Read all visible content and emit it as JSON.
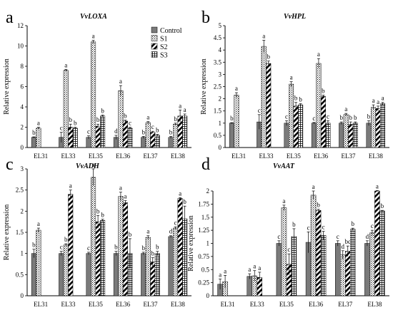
{
  "legend": [
    {
      "name": "Control",
      "pattern": "control"
    },
    {
      "name": "S1",
      "pattern": "s1"
    },
    {
      "name": "S2",
      "pattern": "s2"
    },
    {
      "name": "S3",
      "pattern": "s3"
    }
  ],
  "colors": {
    "control": "#7a7a7a",
    "axis": "#000000"
  },
  "chart_data": [
    {
      "letter": "a",
      "type": "bar",
      "title": "VvLOXA",
      "ylabel": "Relative expression",
      "ylim": [
        0,
        12
      ],
      "yticks": [
        0,
        2,
        4,
        6,
        8,
        10,
        12
      ],
      "categories": [
        "EL31",
        "EL33",
        "EL35",
        "EL36",
        "EL37",
        "EL38"
      ],
      "series": [
        {
          "name": "Control",
          "values": [
            1.0,
            1.0,
            1.0,
            1.0,
            1.0,
            1.0
          ],
          "errors": [
            0.05,
            0.5,
            0.15,
            0.2,
            0.1,
            0.1
          ],
          "letters": [
            "b",
            "c",
            "c",
            "d",
            "b",
            "b"
          ]
        },
        {
          "name": "S1",
          "values": [
            1.9,
            7.6,
            10.4,
            5.6,
            2.45,
            2.3
          ],
          "errors": [
            0.1,
            0.1,
            0.15,
            0.5,
            0.1,
            0.1
          ],
          "letters": [
            "a",
            "a",
            "a",
            "a",
            "a",
            "b"
          ]
        },
        {
          "name": "S2",
          "values": [
            null,
            2.0,
            2.1,
            2.6,
            1.5,
            3.1
          ],
          "errors": [
            null,
            0.3,
            0.2,
            0.1,
            0.1,
            0.6
          ],
          "letters": [
            null,
            "b",
            "b",
            "b",
            "c",
            "a"
          ]
        },
        {
          "name": "S3",
          "values": [
            null,
            1.9,
            3.1,
            1.9,
            1.2,
            3.1
          ],
          "errors": [
            null,
            0.1,
            0.1,
            0.1,
            0.1,
            0.2
          ],
          "letters": [
            null,
            "b",
            "b",
            "c",
            "b",
            "a"
          ]
        }
      ]
    },
    {
      "letter": "b",
      "type": "bar",
      "title": "VvHPL",
      "ylabel": "Relative expression",
      "ylim": [
        0,
        5
      ],
      "yticks": [
        0,
        0.5,
        1,
        1.5,
        2,
        2.5,
        3,
        3.5,
        4,
        4.5,
        5
      ],
      "categories": [
        "EL31",
        "EL33",
        "EL35",
        "EL36",
        "EL37",
        "EL38"
      ],
      "series": [
        {
          "name": "Control",
          "values": [
            1.0,
            1.05,
            1.0,
            1.0,
            1.0,
            1.0
          ],
          "errors": [
            0.02,
            0.3,
            0.1,
            0.03,
            0.05,
            0.1
          ],
          "letters": [
            "b",
            "c",
            "c",
            "c",
            "b",
            "b"
          ]
        },
        {
          "name": "S1",
          "values": [
            2.15,
            4.15,
            2.6,
            3.45,
            1.35,
            1.65
          ],
          "errors": [
            0.1,
            0.25,
            0.1,
            0.2,
            0.05,
            0.1
          ],
          "letters": [
            "a",
            "a",
            "a",
            "a",
            "a",
            "a"
          ]
        },
        {
          "name": "S2",
          "values": [
            null,
            3.45,
            1.7,
            2.1,
            0.95,
            1.6
          ],
          "errors": [
            null,
            0.1,
            0.15,
            0.05,
            0.1,
            0.1
          ],
          "letters": [
            null,
            "b",
            "b",
            "b",
            "b",
            "a"
          ]
        },
        {
          "name": "S3",
          "values": [
            null,
            null,
            1.75,
            1.0,
            1.0,
            1.8
          ],
          "errors": [
            null,
            null,
            0.05,
            0.1,
            0.05,
            0.05
          ],
          "letters": [
            null,
            null,
            "b",
            "c",
            "b",
            "a"
          ]
        }
      ]
    },
    {
      "letter": "c",
      "type": "bar",
      "title": "VvADH",
      "ylabel": "Relative expression",
      "ylim": [
        0,
        3
      ],
      "yticks": [
        0,
        0.5,
        1,
        1.5,
        2,
        2.5,
        3
      ],
      "categories": [
        "EL31",
        "EL33",
        "EL35",
        "EL36",
        "EL37",
        "EL38"
      ],
      "series": [
        {
          "name": "Control",
          "values": [
            1.0,
            1.0,
            1.0,
            1.0,
            1.0,
            1.4
          ],
          "errors": [
            0.1,
            0.05,
            0.03,
            0.05,
            0.03,
            0.02
          ],
          "letters": [
            "b",
            "c",
            "c",
            "b",
            "b",
            "d"
          ]
        },
        {
          "name": "S1",
          "values": [
            1.55,
            1.2,
            2.8,
            2.35,
            1.38,
            1.6
          ],
          "errors": [
            0.05,
            0.03,
            0.2,
            0.1,
            0.04,
            0.03
          ],
          "letters": [
            "a",
            "b",
            "a",
            "a",
            "a",
            "c"
          ]
        },
        {
          "name": "S2",
          "values": [
            null,
            2.4,
            1.75,
            2.2,
            0.8,
            2.3
          ],
          "errors": [
            null,
            0.1,
            0.15,
            0.05,
            0.1,
            0.02
          ],
          "letters": [
            null,
            "a",
            "b",
            "a",
            "b",
            "a"
          ]
        },
        {
          "name": "S3",
          "values": [
            null,
            null,
            1.78,
            1.0,
            1.0,
            1.82
          ],
          "errors": [
            null,
            null,
            0.03,
            0.35,
            0.05,
            0.3
          ],
          "letters": [
            null,
            null,
            "b",
            "b",
            "b",
            "b"
          ]
        }
      ]
    },
    {
      "letter": "d",
      "type": "bar",
      "title": "VvAAT",
      "ylabel": "Relative expression",
      "ylim": [
        0,
        2.0
      ],
      "yticks": [
        0,
        0.25,
        0.5,
        0.75,
        1,
        1.25,
        1.5,
        1.75,
        2
      ],
      "categories": [
        "EL31",
        "EL33",
        "EL35",
        "EL36",
        "EL37",
        "EL38"
      ],
      "series": [
        {
          "name": "Control",
          "values": [
            0.22,
            0.37,
            1.0,
            1.02,
            1.0,
            1.0
          ],
          "errors": [
            0.1,
            0.05,
            0.05,
            0.2,
            0.05,
            0.05
          ],
          "letters": [
            "a",
            "a",
            "c",
            "c",
            "c",
            "d"
          ]
        },
        {
          "name": "S1",
          "values": [
            0.27,
            0.38,
            1.68,
            1.92,
            0.78,
            1.2
          ],
          "errors": [
            0.12,
            0.1,
            0.05,
            0.08,
            0.08,
            0.05
          ],
          "letters": [
            "a",
            "a",
            "a",
            "a",
            "d",
            "c"
          ]
        },
        {
          "name": "S2",
          "values": [
            null,
            0.35,
            0.6,
            1.63,
            0.85,
            2.0
          ],
          "errors": [
            null,
            0.1,
            0.2,
            0.02,
            0.1,
            0.01
          ],
          "letters": [
            null,
            "a",
            "c",
            "b",
            "bc",
            "a"
          ]
        },
        {
          "name": "S3",
          "values": [
            null,
            null,
            1.13,
            1.15,
            1.27,
            1.62
          ],
          "errors": [
            null,
            null,
            0.15,
            0.08,
            0.02,
            0.01
          ],
          "letters": [
            null,
            null,
            "b",
            "c",
            "b",
            "b"
          ]
        }
      ]
    }
  ]
}
